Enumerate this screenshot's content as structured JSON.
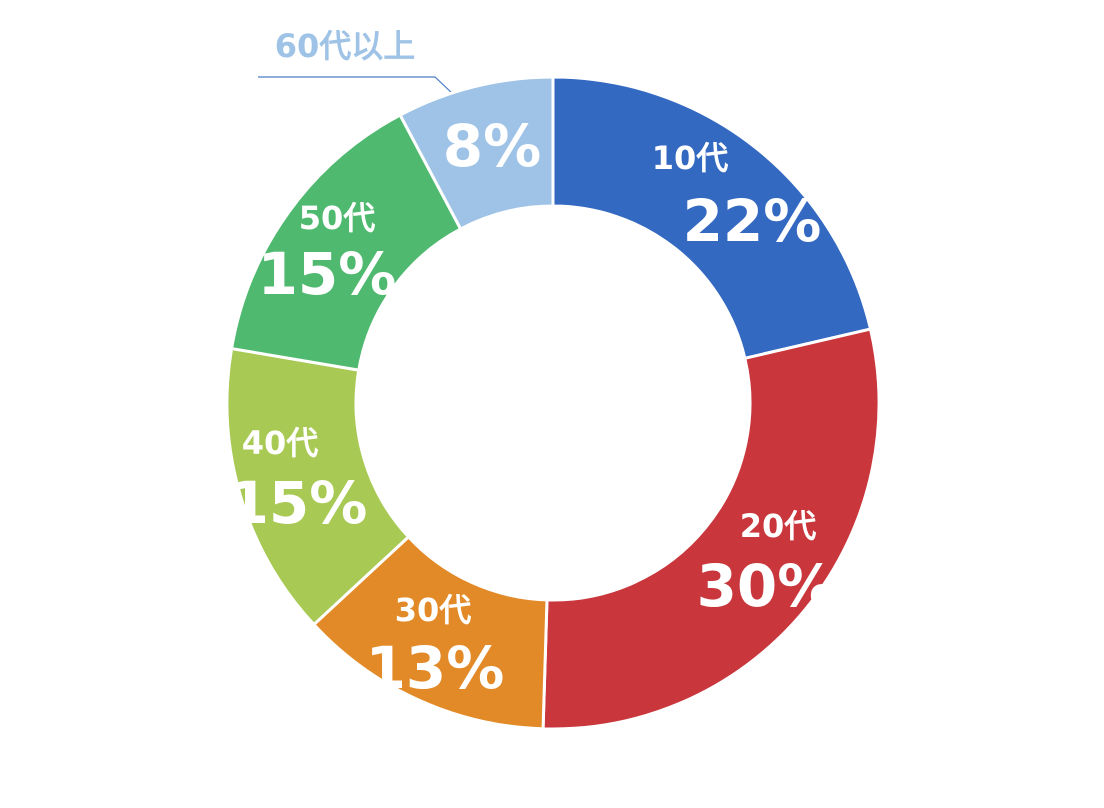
{
  "chart_data": {
    "type": "donut",
    "categories": [
      "10代",
      "20代",
      "30代",
      "40代",
      "50代",
      "60代以上"
    ],
    "values": [
      22,
      30,
      13,
      15,
      15,
      8
    ],
    "value_labels": [
      "22%",
      "30%",
      "13%",
      "15%",
      "15%",
      "8%"
    ],
    "colors": [
      "#3469c1",
      "#c9363c",
      "#e38a28",
      "#a8c954",
      "#4fb96f",
      "#9fc3e6"
    ]
  }
}
